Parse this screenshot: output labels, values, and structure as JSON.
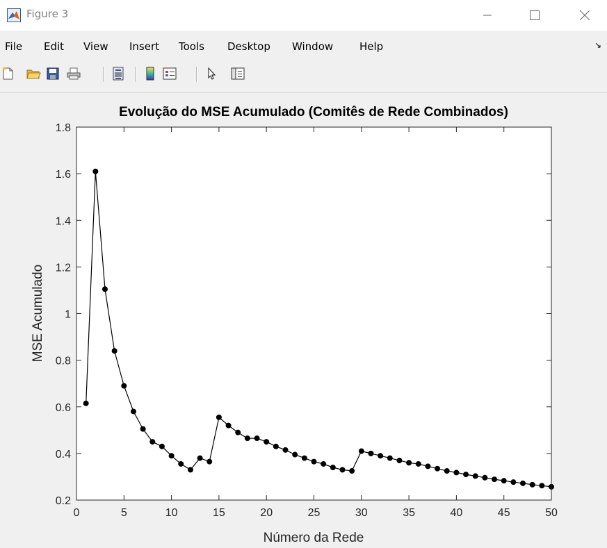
{
  "window": {
    "title": "Figure 3",
    "controls": {
      "minimize": "—",
      "maximize": "☐",
      "close": "✕"
    }
  },
  "menu": {
    "items": [
      "File",
      "Edit",
      "View",
      "Insert",
      "Tools",
      "Desktop",
      "Window",
      "Help"
    ],
    "dock_glyph": "↘"
  },
  "toolbar": {
    "buttons": [
      "new-figure-icon",
      "open-file-icon",
      "save-icon",
      "print-icon",
      "print-preview-icon",
      "insert-colorbar-icon",
      "insert-legend-icon",
      "edit-plot-arrow-icon",
      "property-inspector-icon"
    ]
  },
  "chart_data": {
    "type": "line",
    "title": "Evolução do MSE Acumulado (Comitês de Rede Combinados)",
    "xlabel": "Número da Rede",
    "ylabel": "MSE Acumulado",
    "xlim": [
      0,
      50
    ],
    "ylim": [
      0.2,
      1.8
    ],
    "xticks": [
      0,
      5,
      10,
      15,
      20,
      25,
      30,
      35,
      40,
      45,
      50
    ],
    "yticks": [
      0.2,
      0.4,
      0.6,
      0.8,
      1,
      1.2,
      1.4,
      1.6,
      1.8
    ],
    "grid": false,
    "line_color": "#000000",
    "marker": "filled-circle",
    "x": [
      1,
      2,
      3,
      4,
      5,
      6,
      7,
      8,
      9,
      10,
      11,
      12,
      13,
      14,
      15,
      16,
      17,
      18,
      19,
      20,
      21,
      22,
      23,
      24,
      25,
      26,
      27,
      28,
      29,
      30,
      31,
      32,
      33,
      34,
      35,
      36,
      37,
      38,
      39,
      40,
      41,
      42,
      43,
      44,
      45,
      46,
      47,
      48,
      49,
      50
    ],
    "values": [
      0.615,
      1.61,
      1.105,
      0.84,
      0.69,
      0.58,
      0.505,
      0.45,
      0.43,
      0.39,
      0.355,
      0.33,
      0.38,
      0.365,
      0.555,
      0.52,
      0.49,
      0.465,
      0.465,
      0.45,
      0.43,
      0.415,
      0.395,
      0.38,
      0.365,
      0.355,
      0.34,
      0.33,
      0.325,
      0.41,
      0.4,
      0.39,
      0.38,
      0.37,
      0.36,
      0.355,
      0.345,
      0.335,
      0.325,
      0.318,
      0.31,
      0.303,
      0.296,
      0.289,
      0.283,
      0.277,
      0.272,
      0.266,
      0.262,
      0.257
    ]
  }
}
